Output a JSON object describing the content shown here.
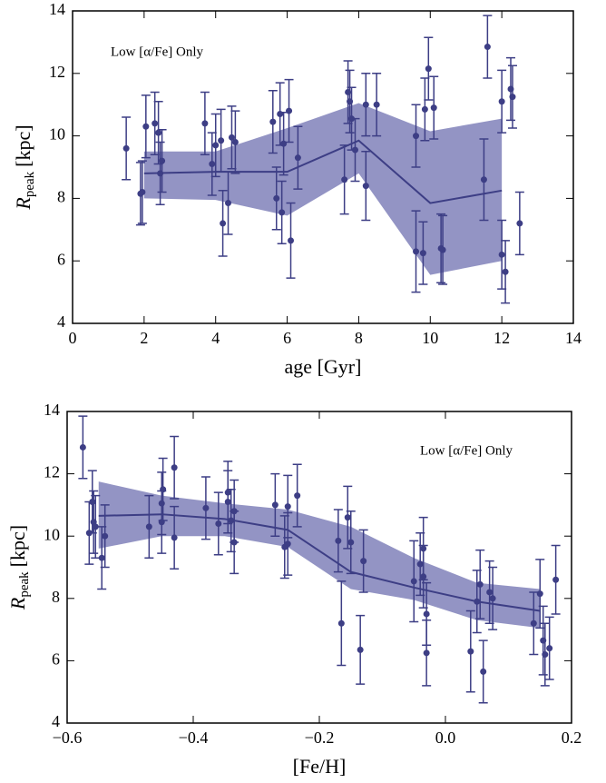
{
  "chart_data": [
    {
      "type": "scatter",
      "annotation": "Low [α/Fe] Only",
      "xlabel": "age [Gyr]",
      "ylabel": [
        "R",
        "peak",
        "[kpc]"
      ],
      "color": "#3d3e85",
      "band_color": "#9394c4",
      "xlim": [
        0,
        14
      ],
      "ylim": [
        4,
        14
      ],
      "xticks": [
        0,
        2,
        4,
        6,
        8,
        10,
        12,
        14
      ],
      "yticks": [
        4,
        6,
        8,
        10,
        12,
        14
      ],
      "x": [
        1.5,
        1.9,
        1.95,
        2.05,
        2.3,
        2.4,
        2.45,
        2.5,
        3.7,
        3.9,
        4.0,
        4.15,
        4.2,
        4.35,
        4.45,
        4.55,
        5.6,
        5.7,
        5.8,
        5.85,
        5.9,
        6.05,
        6.1,
        6.3,
        7.6,
        7.7,
        7.75,
        7.8,
        7.9,
        8.2,
        8.2,
        8.5,
        9.6,
        9.6,
        9.8,
        9.85,
        9.95,
        10.1,
        10.3,
        10.35,
        11.5,
        11.6,
        12.0,
        12.0,
        12.1,
        12.25,
        12.3,
        12.5
      ],
      "y": [
        9.6,
        8.15,
        8.2,
        10.3,
        10.4,
        10.1,
        8.8,
        9.2,
        10.4,
        9.1,
        9.7,
        9.85,
        7.2,
        7.85,
        9.95,
        9.8,
        10.45,
        8.0,
        10.7,
        7.55,
        9.75,
        10.8,
        6.65,
        9.3,
        8.6,
        11.4,
        11.1,
        10.55,
        9.55,
        8.4,
        11.0,
        11.0,
        6.3,
        10.0,
        6.25,
        10.85,
        12.15,
        10.9,
        6.4,
        6.35,
        8.6,
        12.85,
        6.2,
        11.1,
        5.65,
        11.5,
        11.25,
        7.2
      ],
      "yerr": [
        1.0,
        1.0,
        1.0,
        1.0,
        1.0,
        1.0,
        1.0,
        1.0,
        1.0,
        1.0,
        1.0,
        1.0,
        1.05,
        1.0,
        1.0,
        1.0,
        1.0,
        1.0,
        1.0,
        1.0,
        1.0,
        1.0,
        1.2,
        1.0,
        1.1,
        1.0,
        1.0,
        1.0,
        1.0,
        1.1,
        1.0,
        1.0,
        1.3,
        1.0,
        1.0,
        1.0,
        1.0,
        1.0,
        1.1,
        1.1,
        1.3,
        1.0,
        1.1,
        1.0,
        1.0,
        1.0,
        1.0,
        1.0
      ],
      "line": {
        "x": [
          2,
          4,
          6,
          8,
          10,
          12
        ],
        "y": [
          8.8,
          8.85,
          8.85,
          9.85,
          7.85,
          8.25
        ]
      },
      "band": {
        "x": [
          2,
          4,
          6,
          8,
          10,
          12
        ],
        "lower": [
          8.0,
          7.95,
          7.45,
          8.8,
          5.55,
          6.0
        ],
        "upper": [
          9.5,
          9.5,
          10.25,
          11.05,
          10.15,
          10.55
        ]
      }
    },
    {
      "type": "scatter",
      "annotation": "Low [α/Fe] Only",
      "xlabel": "[Fe/H]",
      "ylabel": [
        "R",
        "peak",
        "[kpc]"
      ],
      "color": "#3d3e85",
      "band_color": "#9394c4",
      "xlim": [
        -0.6,
        0.2
      ],
      "ylim": [
        4,
        14
      ],
      "xticks": [
        {
          "value": -0.6,
          "label": "−0.6"
        },
        {
          "value": -0.4,
          "label": "−0.4"
        },
        {
          "value": -0.2,
          "label": "−0.2"
        },
        {
          "value": 0,
          "label": "0.0"
        },
        0.2
      ],
      "yticks": [
        4,
        6,
        8,
        10,
        12,
        14
      ],
      "x": [
        -0.575,
        -0.565,
        -0.56,
        -0.558,
        -0.555,
        -0.545,
        -0.54,
        -0.47,
        -0.45,
        -0.45,
        -0.448,
        -0.43,
        -0.43,
        -0.38,
        -0.36,
        -0.345,
        -0.345,
        -0.34,
        -0.335,
        -0.335,
        -0.27,
        -0.255,
        -0.25,
        -0.25,
        -0.235,
        -0.17,
        -0.165,
        -0.155,
        -0.15,
        -0.135,
        -0.13,
        -0.05,
        -0.04,
        -0.035,
        -0.035,
        -0.03,
        -0.03,
        0.04,
        0.05,
        0.055,
        0.06,
        0.07,
        0.075,
        0.14,
        0.15,
        0.155,
        0.158,
        0.165,
        0.175
      ],
      "y": [
        12.85,
        10.1,
        11.1,
        10.45,
        10.3,
        9.3,
        10.0,
        10.3,
        10.45,
        11.05,
        11.5,
        12.2,
        9.95,
        10.9,
        10.4,
        11.4,
        11.1,
        10.5,
        9.8,
        10.8,
        11.0,
        9.65,
        10.95,
        9.75,
        11.3,
        9.85,
        7.2,
        10.6,
        9.8,
        6.35,
        9.2,
        8.55,
        9.1,
        9.6,
        8.7,
        7.5,
        6.25,
        6.3,
        7.9,
        8.45,
        5.65,
        8.2,
        8.0,
        7.2,
        8.15,
        6.65,
        6.2,
        6.4,
        8.6
      ],
      "yerr": [
        1.0,
        1.0,
        1.0,
        1.0,
        1.0,
        1.0,
        1.0,
        1.0,
        1.0,
        1.0,
        1.0,
        1.0,
        1.0,
        1.0,
        1.0,
        1.0,
        1.0,
        1.0,
        1.0,
        1.0,
        1.0,
        1.0,
        1.0,
        1.0,
        1.0,
        1.0,
        1.35,
        1.0,
        1.0,
        1.1,
        1.0,
        1.3,
        1.0,
        1.0,
        1.0,
        1.0,
        1.05,
        1.3,
        1.0,
        1.1,
        1.0,
        1.0,
        1.0,
        1.0,
        1.1,
        1.1,
        1.0,
        1.0,
        1.1
      ],
      "line": {
        "x": [
          -0.55,
          -0.45,
          -0.35,
          -0.25,
          -0.15,
          -0.05,
          0.05,
          0.15
        ],
        "y": [
          10.65,
          10.7,
          10.55,
          10.2,
          8.85,
          8.35,
          7.9,
          7.6
        ]
      },
      "band": {
        "x": [
          -0.55,
          -0.45,
          -0.35,
          -0.25,
          -0.15,
          -0.05,
          0.05,
          0.15
        ],
        "lower": [
          9.6,
          10.0,
          10.0,
          9.65,
          8.3,
          7.95,
          7.3,
          7.05
        ],
        "upper": [
          11.75,
          11.3,
          11.05,
          10.85,
          10.3,
          9.3,
          8.5,
          8.3
        ]
      }
    }
  ]
}
